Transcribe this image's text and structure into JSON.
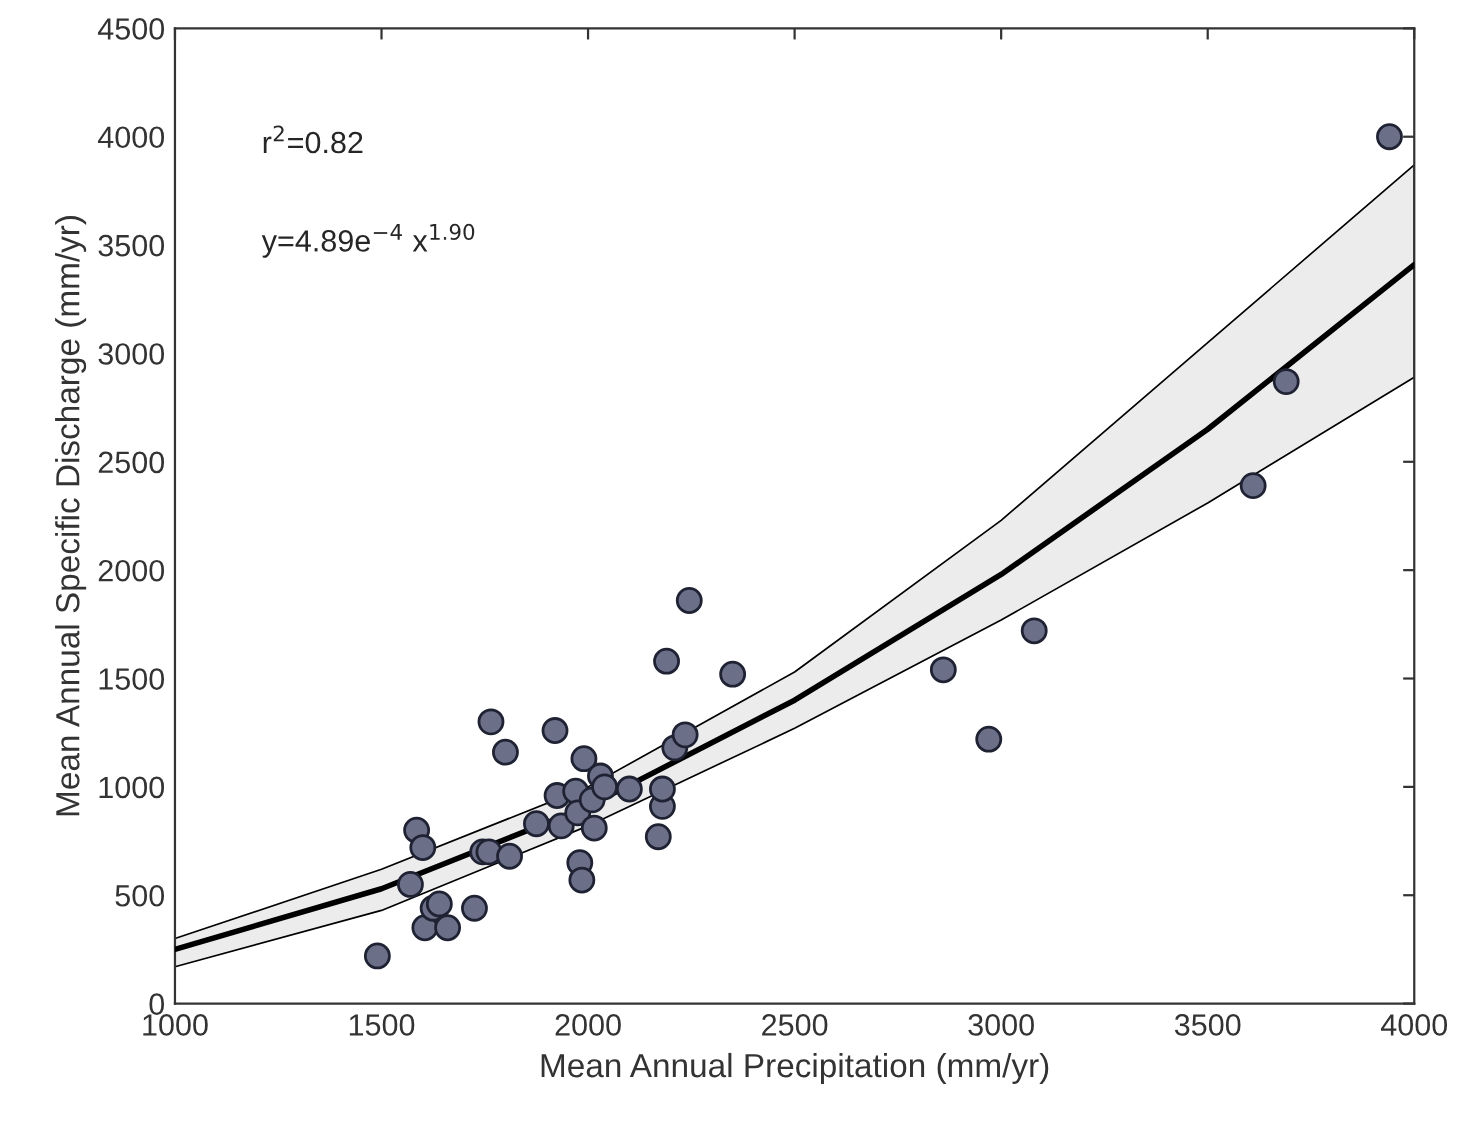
{
  "chart_data": {
    "type": "scatter",
    "xlabel": "Mean Annual Precipitation (mm/yr)",
    "ylabel": "Mean Annual Specific Discharge (mm/yr)",
    "xlim": [
      1000,
      4000
    ],
    "xticks": [
      1000,
      1500,
      2000,
      2500,
      3000,
      3500,
      4000
    ],
    "ylim": [
      0,
      4500
    ],
    "yticks": [
      0,
      500,
      1000,
      1500,
      2000,
      2500,
      3000,
      3500,
      4000,
      4500
    ],
    "grid": false,
    "marker": "circle",
    "annotations": [
      "r$^{2}$=0.82",
      "y=4.89e$^{−4}$ x$^{1.90}$"
    ],
    "series": [
      {
        "type": "line",
        "color": "#000000",
        "marker": "none",
        "line_style": "solid",
        "x": [
          1000,
          1500,
          2000,
          2500,
          3000,
          3500,
          4000
        ],
        "values": [
          250,
          530,
          910,
          1400,
          1980,
          2650,
          3410
        ],
        "lower": [
          170,
          430,
          820,
          1270,
          1770,
          2310,
          2890
        ],
        "upper": [
          300,
          620,
          1000,
          1530,
          2230,
          3050,
          3870
        ]
      },
      {
        "color": "#6b7088",
        "x": [
          1490,
          1570,
          1585,
          1600,
          1605,
          1625,
          1640,
          1660,
          1725,
          1745,
          1760,
          1765,
          1800,
          1810,
          1875,
          1920,
          1925,
          1935,
          1970,
          1975,
          1980,
          1985,
          1990,
          2010,
          2015,
          2030,
          2040,
          2100,
          2170,
          2180,
          2180,
          2190,
          2210,
          2235,
          2245,
          2350,
          2860,
          2970,
          3080,
          3610,
          3690,
          3940
        ],
        "values": [
          220,
          550,
          800,
          720,
          350,
          440,
          460,
          350,
          440,
          700,
          700,
          1300,
          1160,
          680,
          830,
          1260,
          960,
          820,
          980,
          880,
          650,
          570,
          1130,
          940,
          810,
          1050,
          1000,
          990,
          770,
          910,
          990,
          1580,
          1180,
          1240,
          1860,
          1520,
          1540,
          1220,
          1720,
          2390,
          2870,
          4000
        ]
      }
    ]
  }
}
